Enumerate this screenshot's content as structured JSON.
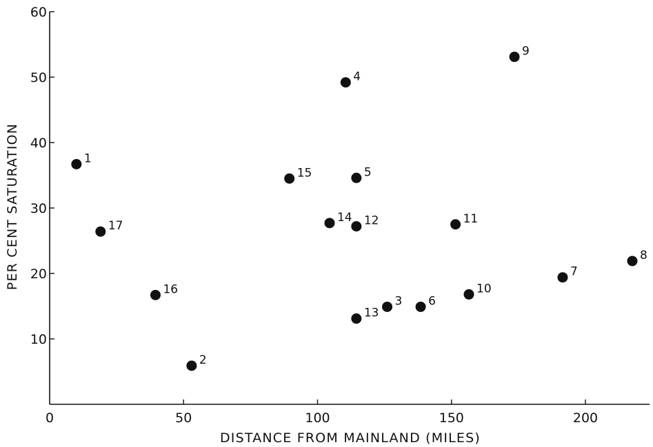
{
  "chart_data": {
    "type": "scatter",
    "title": "",
    "xlabel": "DISTANCE FROM MAINLAND (MILES)",
    "ylabel": "PER CENT SATURATION",
    "xlim": [
      0,
      225
    ],
    "ylim": [
      0,
      60
    ],
    "x_ticks": [
      {
        "value": 0,
        "label": "0"
      },
      {
        "value": 50,
        "label": "50"
      },
      {
        "value": 100,
        "label": "100"
      },
      {
        "value": 150,
        "label": "150"
      },
      {
        "value": 200,
        "label": "200"
      }
    ],
    "y_ticks": [
      {
        "value": 10,
        "label": "10"
      },
      {
        "value": 20,
        "label": "20"
      },
      {
        "value": 30,
        "label": "30"
      },
      {
        "value": 40,
        "label": "40"
      },
      {
        "value": 50,
        "label": "50"
      },
      {
        "value": 60,
        "label": "60"
      }
    ],
    "grid": false,
    "legend": "none",
    "marker_color": "#111111",
    "points": [
      {
        "label": "1",
        "x": 10,
        "y": 36.7
      },
      {
        "label": "2",
        "x": 53,
        "y": 5.9
      },
      {
        "label": "3",
        "x": 126,
        "y": 14.9
      },
      {
        "label": "4",
        "x": 110.5,
        "y": 49.2
      },
      {
        "label": "5",
        "x": 114.5,
        "y": 34.6
      },
      {
        "label": "6",
        "x": 138.5,
        "y": 14.9
      },
      {
        "label": "7",
        "x": 191.5,
        "y": 19.4
      },
      {
        "label": "8",
        "x": 217.5,
        "y": 21.9
      },
      {
        "label": "9",
        "x": 173.5,
        "y": 53.1
      },
      {
        "label": "10",
        "x": 156.5,
        "y": 16.8
      },
      {
        "label": "11",
        "x": 151.5,
        "y": 27.5
      },
      {
        "label": "12",
        "x": 114.5,
        "y": 27.2
      },
      {
        "label": "13",
        "x": 114.5,
        "y": 13.1
      },
      {
        "label": "14",
        "x": 104.5,
        "y": 27.7
      },
      {
        "label": "15",
        "x": 89.5,
        "y": 34.5
      },
      {
        "label": "16",
        "x": 39.5,
        "y": 16.7
      },
      {
        "label": "17",
        "x": 19,
        "y": 26.4
      }
    ]
  }
}
